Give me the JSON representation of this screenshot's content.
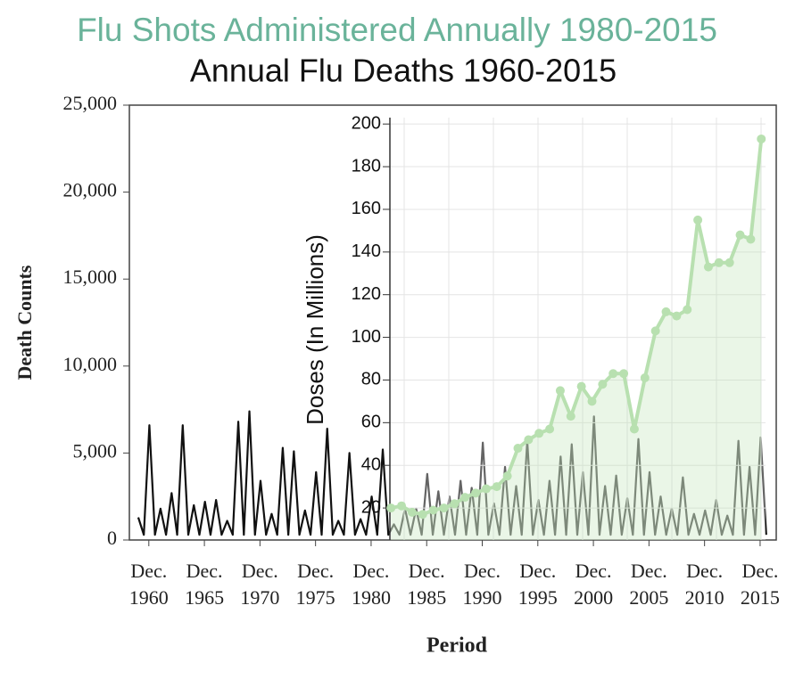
{
  "chart_data": [
    {
      "type": "line",
      "title": "Annual Flu Deaths 1960-2015",
      "x_label": "Period",
      "y_label": "Death Counts",
      "xlim": [
        1959.2,
        2017.4
      ],
      "ylim": [
        0,
        25000
      ],
      "xticks": [
        {
          "value": 1960.95,
          "label": "Dec.\n1960"
        },
        {
          "value": 1965.95,
          "label": "Dec.\n1965"
        },
        {
          "value": 1970.95,
          "label": "Dec.\n1970"
        },
        {
          "value": 1975.95,
          "label": "Dec.\n1975"
        },
        {
          "value": 1980.95,
          "label": "Dec.\n1980"
        },
        {
          "value": 1985.95,
          "label": "Dec.\n1985"
        },
        {
          "value": 1990.95,
          "label": "Dec.\n1990"
        },
        {
          "value": 1995.95,
          "label": "Dec.\n1995"
        },
        {
          "value": 2000.95,
          "label": "Dec.\n2000"
        },
        {
          "value": 2005.95,
          "label": "Dec.\n2005"
        },
        {
          "value": 2010.95,
          "label": "Dec.\n2010"
        },
        {
          "value": 2015.95,
          "label": "Dec.\n2015"
        }
      ],
      "yticks": [
        0,
        {
          "value": 5000,
          "label": "5,000"
        },
        {
          "value": 10000,
          "label": "10,000"
        },
        {
          "value": 15000,
          "label": "15,000"
        },
        {
          "value": 20000,
          "label": "20,000"
        },
        {
          "value": 25000,
          "label": "25,000"
        }
      ],
      "color": "#111111",
      "x": [
        1960,
        1960.5,
        1961,
        1961.5,
        1962,
        1962.5,
        1963,
        1963.5,
        1964,
        1964.5,
        1965,
        1965.5,
        1966,
        1966.5,
        1967,
        1967.5,
        1968,
        1968.5,
        1969,
        1969.5,
        1970,
        1970.5,
        1971,
        1971.5,
        1972,
        1972.5,
        1973,
        1973.5,
        1974,
        1974.5,
        1975,
        1975.5,
        1976,
        1976.5,
        1977,
        1977.5,
        1978,
        1978.5,
        1979,
        1979.5,
        1980,
        1980.5,
        1981,
        1981.5,
        1982,
        1982.5,
        1983,
        1983.5,
        1984,
        1984.5,
        1985,
        1985.5,
        1986,
        1986.5,
        1987,
        1987.5,
        1988,
        1988.5,
        1989,
        1989.5,
        1990,
        1990.5,
        1991,
        1991.5,
        1992,
        1992.5,
        1993,
        1993.5,
        1994,
        1994.5,
        1995,
        1995.5,
        1996,
        1996.5,
        1997,
        1997.5,
        1998,
        1998.5,
        1999,
        1999.5,
        2000,
        2000.5,
        2001,
        2001.5,
        2002,
        2002.5,
        2003,
        2003.5,
        2004,
        2004.5,
        2005,
        2005.5,
        2006,
        2006.5,
        2007,
        2007.5,
        2008,
        2008.5,
        2009,
        2009.5,
        2010,
        2010.5,
        2011,
        2011.5,
        2012,
        2012.5,
        2013,
        2013.5,
        2014,
        2014.5,
        2015,
        2015.5,
        2016,
        2016.5
      ],
      "values": [
        1300,
        300,
        6600,
        300,
        1800,
        300,
        2700,
        300,
        6600,
        300,
        2000,
        300,
        2200,
        300,
        2300,
        300,
        1100,
        300,
        6800,
        300,
        7400,
        300,
        3400,
        300,
        1500,
        300,
        5300,
        300,
        5100,
        300,
        1700,
        300,
        3900,
        300,
        6400,
        300,
        1100,
        300,
        5000,
        300,
        1200,
        300,
        2500,
        300,
        5200,
        300,
        900,
        300,
        1800,
        300,
        1800,
        300,
        3800,
        300,
        2800,
        300,
        2500,
        300,
        3400,
        300,
        3000,
        300,
        5600,
        300,
        2100,
        300,
        4200,
        300,
        3100,
        300,
        5700,
        300,
        2300,
        300,
        3400,
        300,
        4800,
        300,
        5500,
        300,
        3900,
        300,
        7100,
        300,
        3100,
        300,
        3700,
        300,
        2400,
        300,
        5800,
        300,
        3900,
        300,
        2500,
        300,
        1800,
        300,
        3600,
        300,
        1500,
        300,
        1700,
        300,
        2300,
        300,
        1400,
        300,
        5700,
        300,
        4200,
        300,
        5900,
        300
      ]
    },
    {
      "type": "line",
      "title": "Flu Shots Administered Annually 1980-2015",
      "y_label": "Doses (In Millions)",
      "xlim": [
        1979.9,
        2015.4
      ],
      "ylim": [
        5,
        203
      ],
      "yticks": [
        20,
        40,
        60,
        80,
        100,
        120,
        140,
        160,
        180,
        200
      ],
      "color": "#b8e0b0",
      "area": true,
      "grid": true,
      "x": [
        1980,
        1981,
        1982,
        1983,
        1984,
        1985,
        1986,
        1987,
        1988,
        1989,
        1990,
        1991,
        1992,
        1993,
        1994,
        1995,
        1996,
        1997,
        1998,
        1999,
        2000,
        2001,
        2002,
        2003,
        2004,
        2005,
        2006,
        2007,
        2008,
        2009,
        2010,
        2011,
        2012,
        2013,
        2014,
        2015
      ],
      "values": [
        20,
        21,
        18,
        17,
        19,
        20,
        22,
        25,
        27,
        29,
        30,
        35,
        48,
        52,
        55,
        57,
        75,
        63,
        77,
        70,
        78,
        83,
        83,
        57,
        81,
        103,
        112,
        110,
        113,
        155,
        133,
        135,
        135,
        148,
        146,
        193
      ]
    }
  ]
}
